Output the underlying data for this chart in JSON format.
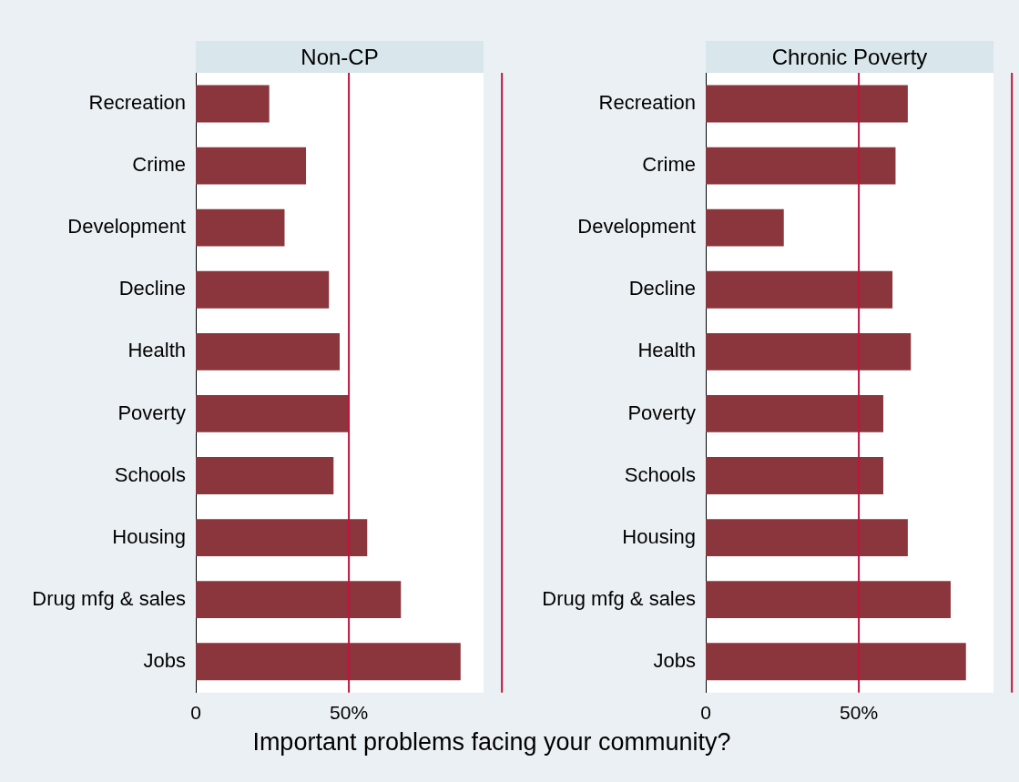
{
  "chart_data": [
    {
      "type": "bar",
      "orientation": "horizontal",
      "title": "Non-CP",
      "xlabel": "Important problems facing your community?",
      "categories": [
        "Recreation",
        "Crime",
        "Development",
        "Decline",
        "Health",
        "Poverty",
        "Schools",
        "Housing",
        "Drug mfg & sales",
        "Jobs"
      ],
      "values": [
        24,
        36,
        29,
        43.5,
        47,
        50,
        45,
        56,
        67,
        86.5
      ],
      "color": "#8b353d",
      "xlim": [
        0,
        94
      ],
      "xticks": [
        0,
        {
          "value": 50,
          "label": "50%"
        }
      ],
      "grid": false,
      "ref_lines": [
        {
          "axis": "x",
          "value": 50,
          "color": "#c0143c"
        },
        {
          "axis": "x",
          "value": 100,
          "color": "#c0143c"
        }
      ]
    },
    {
      "type": "bar",
      "orientation": "horizontal",
      "title": "Chronic Poverty",
      "categories": [
        "Recreation",
        "Crime",
        "Development",
        "Decline",
        "Health",
        "Poverty",
        "Schools",
        "Housing",
        "Drug mfg & sales",
        "Jobs"
      ],
      "values": [
        66,
        62,
        25.5,
        61,
        67,
        58,
        58,
        66,
        80,
        85
      ],
      "color": "#8b353d",
      "xlim": [
        0,
        94
      ],
      "xticks": [
        0,
        {
          "value": 50,
          "label": "50%"
        }
      ],
      "grid": false,
      "ref_lines": [
        {
          "axis": "x",
          "value": 50,
          "color": "#c0143c"
        },
        {
          "axis": "x",
          "value": 100,
          "color": "#c0143c"
        }
      ]
    }
  ]
}
